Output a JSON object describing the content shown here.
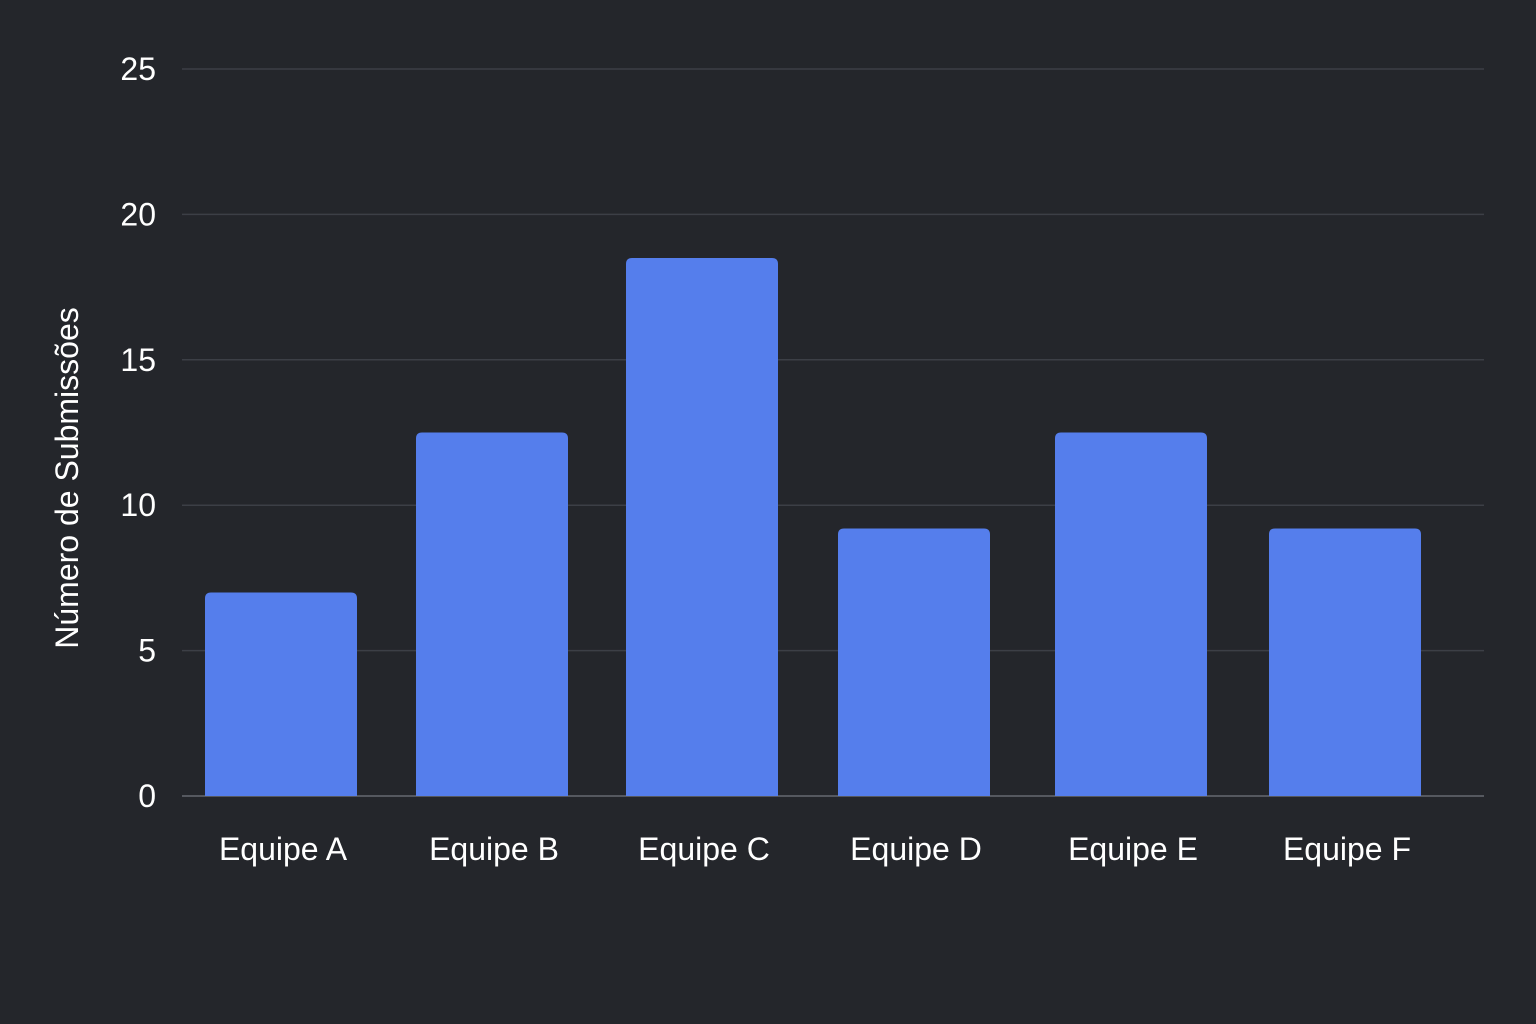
{
  "chart_data": {
    "type": "bar",
    "categories": [
      "Equipe A",
      "Equipe B",
      "Equipe C",
      "Equipe D",
      "Equipe E",
      "Equipe F"
    ],
    "values": [
      7,
      12.5,
      18.5,
      9.2,
      12.5,
      9.2
    ],
    "title": "",
    "xlabel": "",
    "ylabel": "Número de Submissões",
    "ylim": [
      0,
      25
    ],
    "yticks": [
      "0",
      "5",
      "10",
      "15",
      "20",
      "25"
    ],
    "grid": true,
    "legend": "none",
    "colors": {
      "background": "#24262b",
      "bar": "#557eec",
      "grid": "#3c3f46",
      "text": "#ffffff"
    }
  }
}
